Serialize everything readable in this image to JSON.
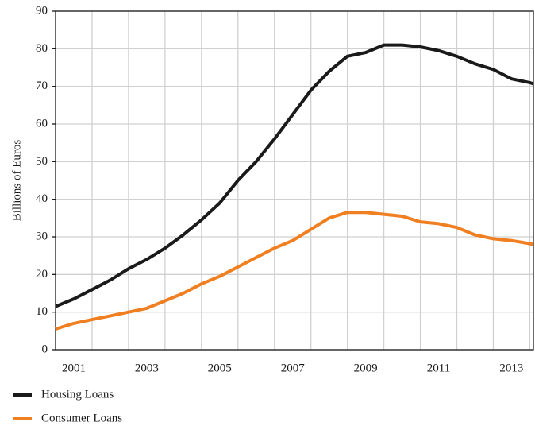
{
  "chart_data": {
    "type": "line",
    "ylabel": "Billions of Euros",
    "x": [
      2001.0,
      2001.5,
      2002.0,
      2002.5,
      2003.0,
      2003.5,
      2004.0,
      2004.5,
      2005.0,
      2005.5,
      2006.0,
      2006.5,
      2007.0,
      2007.5,
      2008.0,
      2008.5,
      2009.0,
      2009.5,
      2010.0,
      2010.5,
      2011.0,
      2011.5,
      2012.0,
      2012.5,
      2013.0,
      2013.5,
      2014.0,
      2014.09
    ],
    "series": [
      {
        "name": "Housing Loans",
        "color": "#1a1a1a",
        "values": [
          11.5,
          13.5,
          16,
          18.5,
          21.5,
          24,
          27,
          30.5,
          34.5,
          39,
          45,
          50,
          56,
          62.5,
          69,
          74,
          78,
          79,
          81,
          81,
          80.5,
          79.5,
          78,
          76,
          74.5,
          72,
          71,
          70.7
        ]
      },
      {
        "name": "Consumer Loans",
        "color": "#f07f22",
        "values": [
          5.5,
          7,
          8,
          9,
          10,
          11,
          13,
          15,
          17.5,
          19.5,
          22,
          24.5,
          27,
          29,
          32,
          35,
          36.5,
          36.5,
          36,
          35.5,
          34,
          33.5,
          32.5,
          30.5,
          29.5,
          29,
          28.2,
          28
        ]
      }
    ],
    "xlim": [
      2001,
      2014.1
    ],
    "xticks": [
      {
        "value": 2001.5,
        "label": "2001"
      },
      {
        "value": 2003.5,
        "label": "2003"
      },
      {
        "value": 2005.5,
        "label": "2005"
      },
      {
        "value": 2007.5,
        "label": "2007"
      },
      {
        "value": 2009.5,
        "label": "2009"
      },
      {
        "value": 2011.5,
        "label": "2011"
      },
      {
        "value": 2013.5,
        "label": "2013"
      }
    ],
    "xgrid": [
      2002,
      2003,
      2004,
      2005,
      2006,
      2007,
      2008,
      2009,
      2010,
      2011,
      2012,
      2013,
      2014
    ],
    "ylim": [
      0,
      90
    ],
    "yticks": [
      0,
      10,
      20,
      30,
      40,
      50,
      60,
      70,
      80,
      90
    ],
    "grid": true,
    "legend": "bottom-left"
  }
}
